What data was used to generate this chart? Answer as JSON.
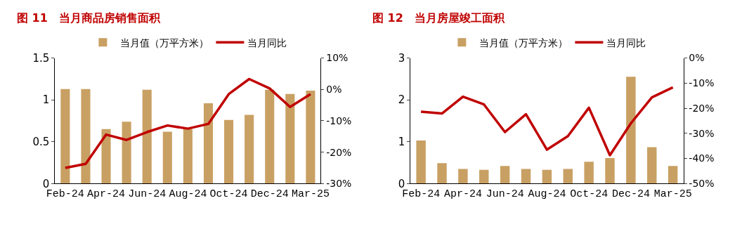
{
  "chart_data": [
    {
      "type": "bar",
      "title": "图 11　当月商品房销售面积",
      "categories": [
        "Feb-24",
        null,
        "Apr-24",
        null,
        "Jun-24",
        null,
        "Aug-24",
        null,
        "Oct-24",
        null,
        "Dec-24",
        null,
        "Mar-25"
      ],
      "series": [
        {
          "name": "当月值（万平方米）",
          "color": "#c9a063",
          "values": [
            1.13,
            1.13,
            0.65,
            0.74,
            1.12,
            0.62,
            0.65,
            0.96,
            0.76,
            0.82,
            1.12,
            1.07,
            1.11
          ]
        },
        {
          "name": "当月同比",
          "type": "line",
          "axis": "y2",
          "color": "#c00000",
          "values": [
            -25.0,
            -23.7,
            -14.4,
            -16.1,
            -13.6,
            -11.5,
            -12.5,
            -11.0,
            -1.5,
            3.3,
            0.3,
            -5.6,
            -1.5
          ]
        }
      ],
      "ylim": [
        0,
        1.5
      ],
      "yticks": [
        0,
        0.5,
        1,
        1.5
      ],
      "y2lim": [
        -30,
        10
      ],
      "y2ticks": [
        {
          "value": -30,
          "label": "-30%"
        },
        {
          "value": -20,
          "label": "-20%"
        },
        {
          "value": -10,
          "label": "-10%"
        },
        {
          "value": 0,
          "label": "0%"
        },
        {
          "value": 10,
          "label": "10%"
        }
      ],
      "legend": "top",
      "grid": false,
      "marker": "none",
      "line_style": "solid"
    },
    {
      "type": "bar",
      "title": "图 12　当月房屋竣工面积",
      "categories": [
        "Feb-24",
        null,
        "Apr-24",
        null,
        "Jun-24",
        null,
        "Aug-24",
        null,
        "Oct-24",
        null,
        "Dec-24",
        null,
        "Mar-25"
      ],
      "series": [
        {
          "name": "当月值（万平方米）",
          "color": "#c9a063",
          "values": [
            1.03,
            0.49,
            0.35,
            0.33,
            0.42,
            0.35,
            0.33,
            0.35,
            0.52,
            0.61,
            2.55,
            0.87,
            0.42
          ]
        },
        {
          "name": "当月同比",
          "type": "line",
          "axis": "y2",
          "color": "#c00000",
          "values": [
            -21.4,
            -22.1,
            -15.4,
            -18.5,
            -29.5,
            -22.4,
            -36.5,
            -31.1,
            -19.8,
            -38.7,
            -26.0,
            -15.7,
            -11.7
          ]
        }
      ],
      "ylim": [
        0,
        3
      ],
      "yticks": [
        0,
        1,
        2,
        3
      ],
      "y2lim": [
        -50,
        0
      ],
      "y2ticks": [
        {
          "value": -50,
          "label": "-50%"
        },
        {
          "value": -40,
          "label": "-40%"
        },
        {
          "value": -30,
          "label": "-30%"
        },
        {
          "value": -20,
          "label": "-20%"
        },
        {
          "value": -10,
          "label": "-10%"
        },
        {
          "value": 0,
          "label": "0%"
        }
      ],
      "legend": "top",
      "grid": false,
      "marker": "none",
      "line_style": "solid"
    }
  ]
}
